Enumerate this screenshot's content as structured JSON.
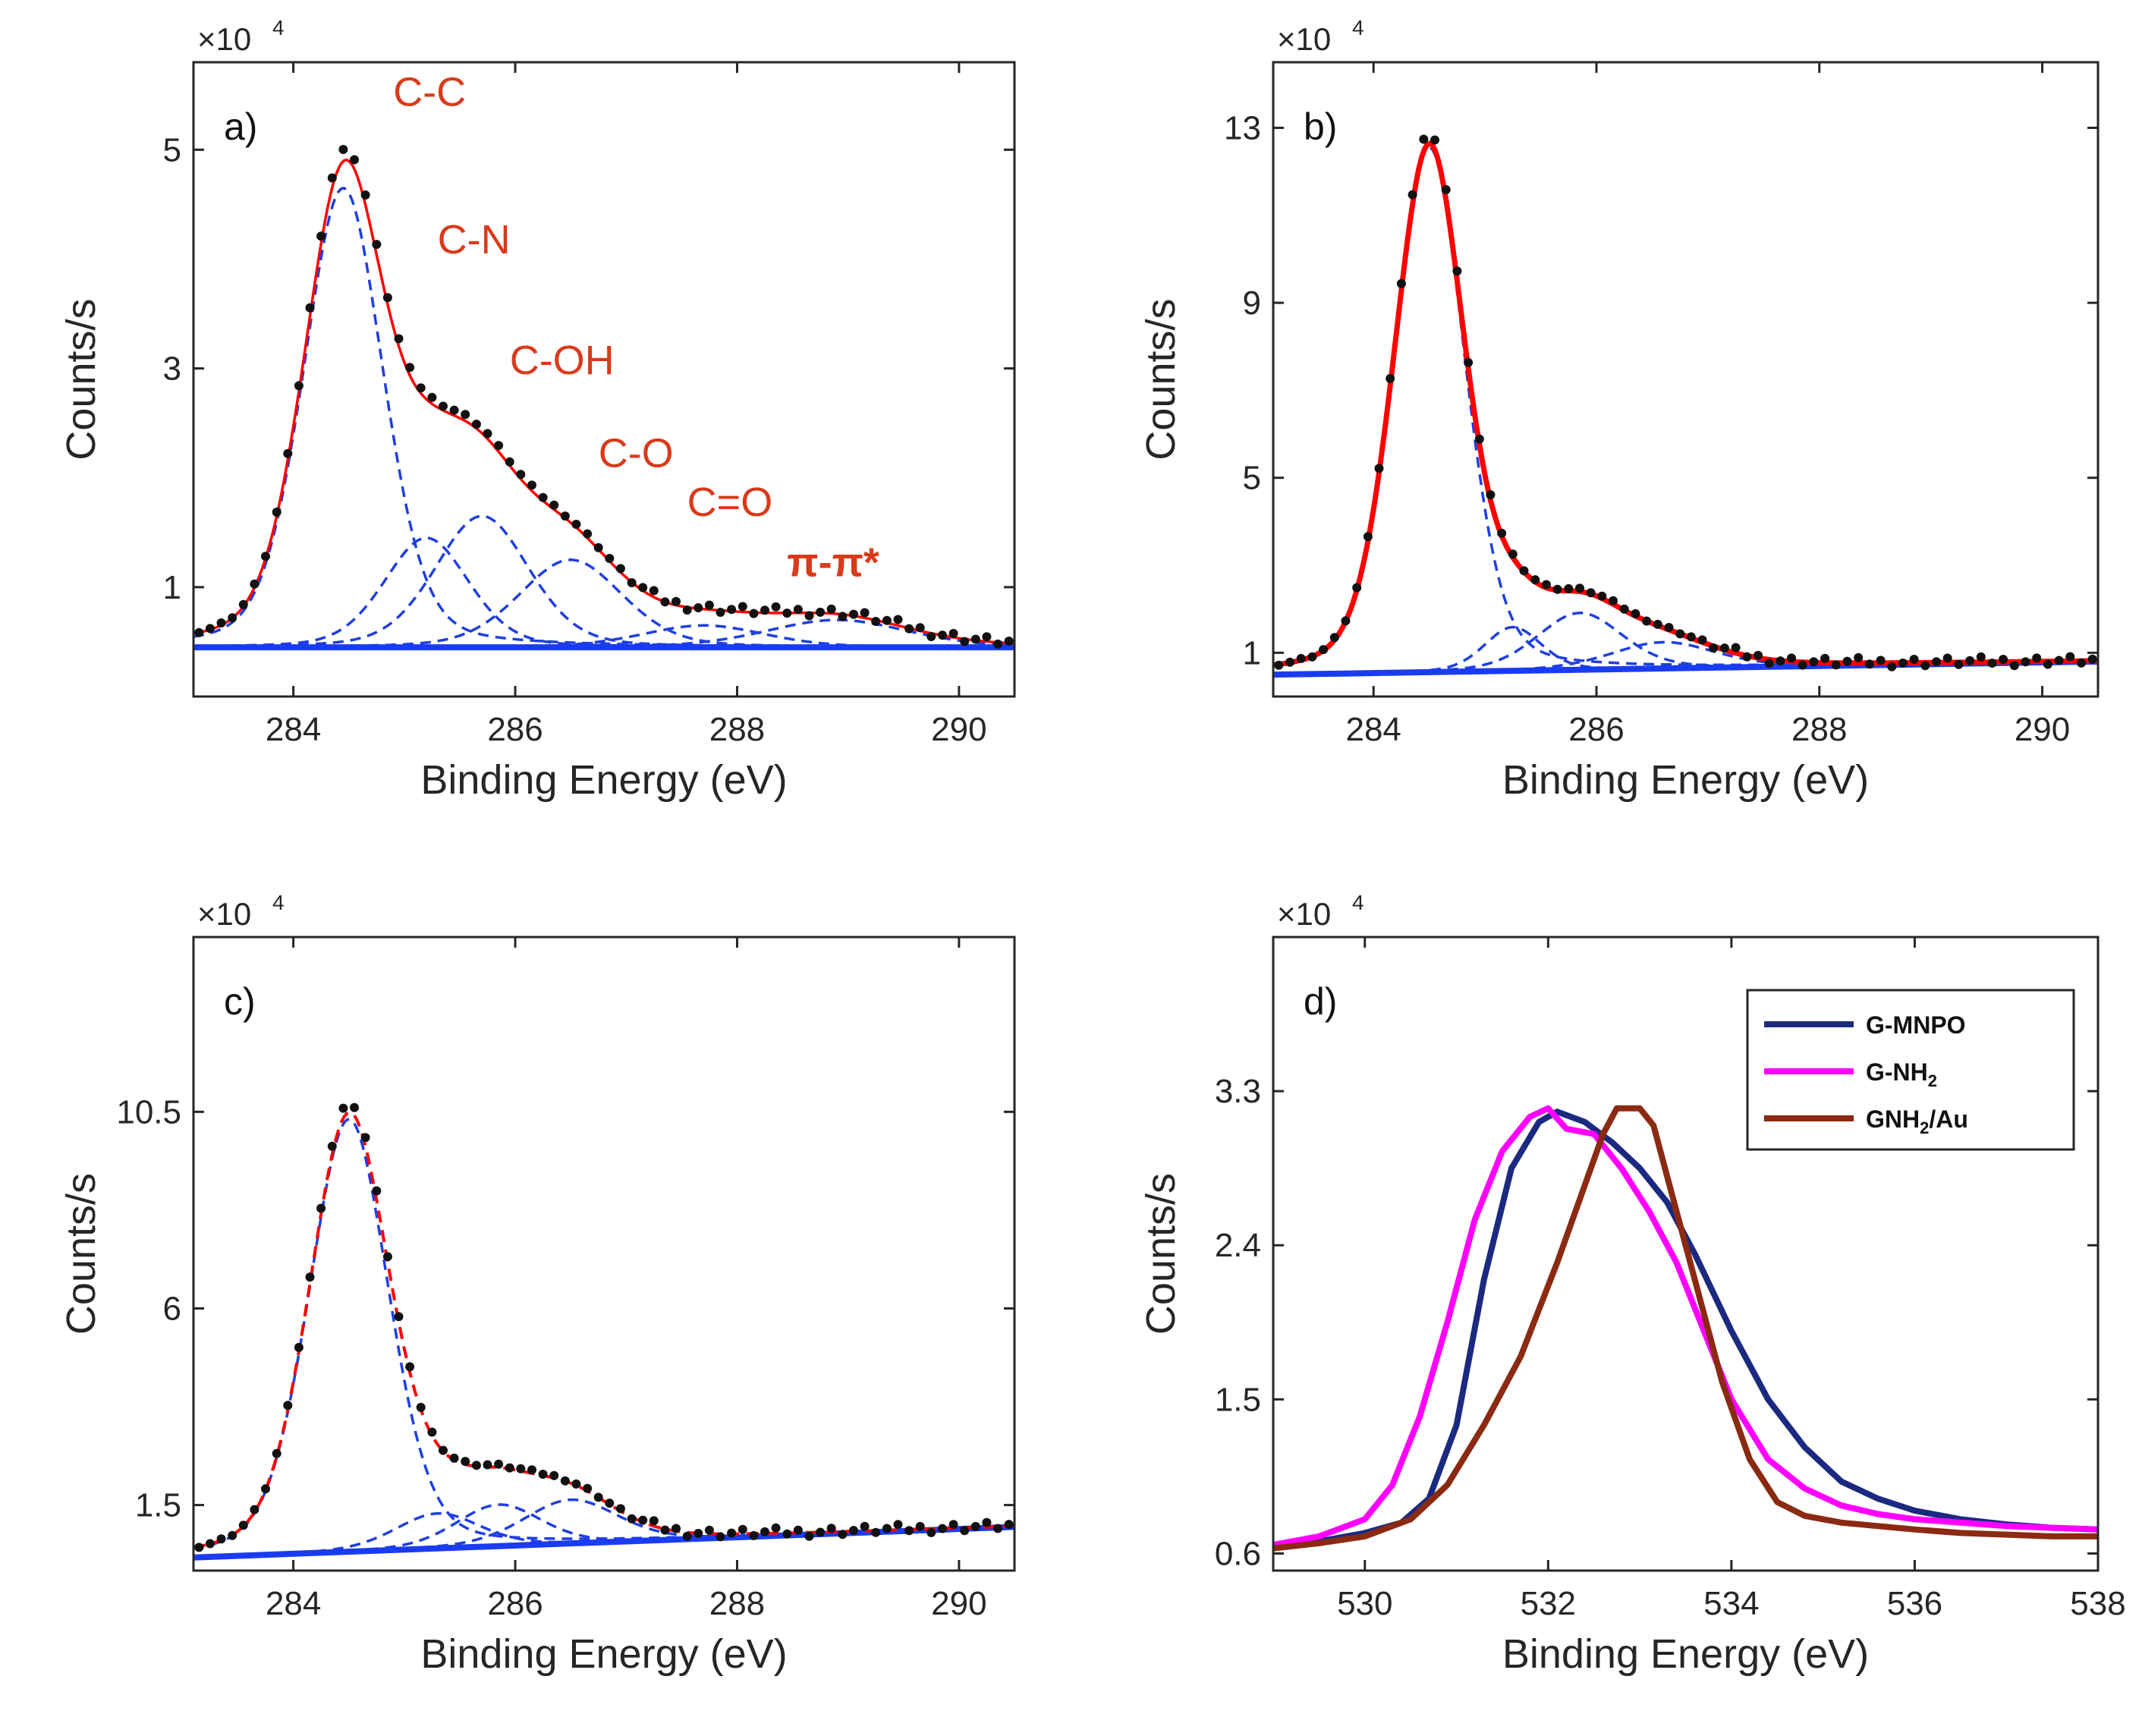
{
  "figure": {
    "xlabel": "Binding Energy (eV)",
    "ylabel": "Counts/s",
    "exponent_prefix": "×10",
    "exponent_power": "4"
  },
  "colors": {
    "data_points": "#111111",
    "fit": "#ff0000",
    "component": "#1f3fe0",
    "background": "#1a3cf0",
    "annotation": "#d93a1a"
  },
  "chart_data": [
    {
      "type": "line",
      "panel_label": "a)",
      "xlabel": "Binding Energy (eV)",
      "ylabel": "Counts/s",
      "y_scale": "×10^4",
      "xlim": [
        283.1,
        290.5
      ],
      "ylim": [
        0,
        5.8
      ],
      "xticks": [
        284,
        286,
        288,
        290
      ],
      "yticks": [
        1,
        3,
        5
      ],
      "annotations": [
        {
          "text": "C-C",
          "x": 284.9,
          "y": 5.4
        },
        {
          "text": "C-N",
          "x": 285.3,
          "y": 4.05
        },
        {
          "text": "C-OH",
          "x": 285.95,
          "y": 2.95
        },
        {
          "text": "C-O",
          "x": 286.75,
          "y": 2.1
        },
        {
          "text": "C=O",
          "x": 287.55,
          "y": 1.65
        },
        {
          "text": "π-π*",
          "x": 288.45,
          "y": 1.1
        }
      ],
      "baseline": {
        "start": 0.45,
        "end": 0.45
      },
      "components": [
        {
          "center": 284.45,
          "fwhm": 0.85,
          "amp": 4.2
        },
        {
          "center": 285.2,
          "fwhm": 0.9,
          "amp": 1.0
        },
        {
          "center": 285.7,
          "fwhm": 1.0,
          "amp": 1.2
        },
        {
          "center": 286.5,
          "fwhm": 1.1,
          "amp": 0.8
        },
        {
          "center": 287.7,
          "fwhm": 1.3,
          "amp": 0.2
        },
        {
          "center": 288.9,
          "fwhm": 1.5,
          "amp": 0.25
        }
      ],
      "fit_dashed": false,
      "fit_width": 3.5,
      "data_step": 0.1
    },
    {
      "type": "line",
      "panel_label": "b)",
      "xlabel": "Binding Energy (eV)",
      "ylabel": "Counts/s",
      "y_scale": "×10^4",
      "xlim": [
        283.1,
        290.5
      ],
      "ylim": [
        0,
        14.5
      ],
      "xticks": [
        284,
        286,
        288,
        290
      ],
      "yticks": [
        1,
        5,
        9,
        13
      ],
      "annotations": [],
      "baseline": {
        "start": 0.5,
        "end": 0.8
      },
      "components": [
        {
          "center": 284.5,
          "fwhm": 0.75,
          "amp": 12.0
        },
        {
          "center": 285.25,
          "fwhm": 0.6,
          "amp": 1.0
        },
        {
          "center": 285.85,
          "fwhm": 0.9,
          "amp": 1.3
        },
        {
          "center": 286.6,
          "fwhm": 1.1,
          "amp": 0.6
        }
      ],
      "fit_dashed": false,
      "fit_width": 7,
      "data_step": 0.1
    },
    {
      "type": "line",
      "panel_label": "c)",
      "xlabel": "Binding Energy (eV)",
      "ylabel": "Counts/s",
      "y_scale": "×10^4",
      "xlim": [
        283.1,
        290.5
      ],
      "ylim": [
        0,
        14.5
      ],
      "xticks": [
        284,
        286,
        288,
        290
      ],
      "yticks": [
        1.5,
        6,
        10.5
      ],
      "annotations": [],
      "baseline": {
        "start": 0.3,
        "end": 1.0
      },
      "components": [
        {
          "center": 284.5,
          "fwhm": 0.85,
          "amp": 9.9
        },
        {
          "center": 285.3,
          "fwhm": 0.9,
          "amp": 0.8
        },
        {
          "center": 285.85,
          "fwhm": 0.9,
          "amp": 0.95
        },
        {
          "center": 286.5,
          "fwhm": 1.0,
          "amp": 1.0
        }
      ],
      "fit_dashed": true,
      "fit_width": 4,
      "data_step": 0.1
    },
    {
      "type": "line",
      "panel_label": "d)",
      "xlabel": "Binding Energy (eV)",
      "ylabel": "Counts/s",
      "y_scale": "×10^4",
      "xlim": [
        529,
        538
      ],
      "ylim": [
        0.5,
        4.2
      ],
      "xticks": [
        530,
        532,
        534,
        536,
        538
      ],
      "yticks": [
        0.6,
        1.5,
        2.4,
        3.3
      ],
      "legend_position": "top-right",
      "series": [
        {
          "name": "G-MNPO",
          "color": "#1b2a80",
          "x": [
            529,
            529.5,
            530,
            530.4,
            530.7,
            531,
            531.3,
            531.6,
            531.9,
            532.1,
            532.4,
            532.7,
            533,
            533.3,
            533.6,
            534,
            534.4,
            534.8,
            535.2,
            535.6,
            536,
            536.5,
            537,
            537.5,
            538
          ],
          "y": [
            0.64,
            0.67,
            0.72,
            0.78,
            0.92,
            1.35,
            2.2,
            2.85,
            3.12,
            3.18,
            3.12,
            3.0,
            2.85,
            2.65,
            2.35,
            1.9,
            1.5,
            1.22,
            1.02,
            0.92,
            0.85,
            0.8,
            0.77,
            0.75,
            0.74
          ]
        },
        {
          "name": "G-NH2",
          "label_main": "G-NH",
          "label_sub": "2",
          "color": "#ff00ff",
          "x": [
            529,
            529.5,
            530,
            530.3,
            530.6,
            530.9,
            531.2,
            531.5,
            531.8,
            532.0,
            532.2,
            532.5,
            532.8,
            533.1,
            533.4,
            533.7,
            534,
            534.4,
            534.8,
            535.2,
            535.6,
            536,
            536.5,
            537,
            537.5,
            538
          ],
          "y": [
            0.65,
            0.7,
            0.8,
            1.0,
            1.4,
            1.95,
            2.55,
            2.95,
            3.15,
            3.2,
            3.08,
            3.05,
            2.85,
            2.6,
            2.3,
            1.9,
            1.5,
            1.15,
            0.98,
            0.88,
            0.83,
            0.8,
            0.78,
            0.76,
            0.75,
            0.74
          ]
        },
        {
          "name": "GNH2/Au",
          "label_main": "GNH",
          "label_sub": "2",
          "label_tail": "/Au",
          "color": "#8b2a12",
          "x": [
            529,
            529.5,
            530,
            530.5,
            530.9,
            531.3,
            531.7,
            532.1,
            532.4,
            532.6,
            532.75,
            533.0,
            533.15,
            533.3,
            533.6,
            533.9,
            534.2,
            534.5,
            534.8,
            535.2,
            535.6,
            536,
            536.5,
            537,
            537.5,
            538
          ],
          "y": [
            0.63,
            0.66,
            0.7,
            0.8,
            1.0,
            1.35,
            1.75,
            2.3,
            2.75,
            3.05,
            3.2,
            3.2,
            3.1,
            2.8,
            2.2,
            1.6,
            1.15,
            0.9,
            0.82,
            0.78,
            0.76,
            0.74,
            0.72,
            0.71,
            0.7,
            0.7
          ]
        }
      ]
    }
  ]
}
